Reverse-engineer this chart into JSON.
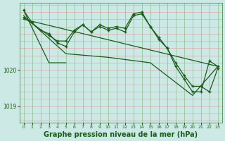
{
  "background_color": "#cce9e5",
  "plot_bg_color": "#cce9e5",
  "grid_color_v": "#5a9a5a",
  "grid_color_h": "#e89090",
  "line_color": "#1a5c1a",
  "xlabel": "Graphe pression niveau de la mer (hPa)",
  "xlabel_fontsize": 7,
  "yticks": [
    1019,
    1020
  ],
  "ylim": [
    1018.55,
    1021.85
  ],
  "xlim": [
    -0.5,
    23.5
  ],
  "xticks": [
    0,
    1,
    2,
    3,
    4,
    5,
    6,
    7,
    8,
    9,
    10,
    11,
    12,
    13,
    14,
    15,
    16,
    17,
    18,
    19,
    20,
    21,
    22,
    23
  ],
  "series1_x": [
    0,
    1,
    2,
    3,
    4,
    5,
    6,
    7,
    8,
    9,
    10,
    11,
    12,
    13,
    14,
    15,
    16,
    17,
    18,
    19,
    20,
    21,
    22,
    23
  ],
  "series1_y": [
    1021.65,
    1021.3,
    1021.1,
    1021.0,
    1020.75,
    1020.65,
    1021.05,
    1021.25,
    1021.05,
    1021.25,
    1021.15,
    1021.2,
    1021.15,
    1021.55,
    1021.6,
    1021.2,
    1020.9,
    1020.6,
    1020.2,
    1019.85,
    1019.55,
    1019.55,
    1019.4,
    1020.05
  ],
  "series2_x": [
    0,
    3,
    4,
    5,
    6,
    7,
    8,
    9,
    10,
    11,
    12,
    13,
    14,
    15,
    16,
    17,
    18,
    19,
    20,
    21,
    22,
    23
  ],
  "series2_y": [
    1021.45,
    1020.95,
    1020.8,
    1020.8,
    1021.1,
    1021.25,
    1021.05,
    1021.2,
    1021.1,
    1021.15,
    1021.05,
    1021.5,
    1021.55,
    1021.2,
    1020.85,
    1020.6,
    1020.1,
    1019.75,
    1019.4,
    1019.4,
    1020.25,
    1020.1
  ],
  "series3_x": [
    0,
    3,
    4,
    5
  ],
  "series3_y": [
    1021.65,
    1020.2,
    1020.2,
    1020.2
  ],
  "series4_x": [
    0,
    5,
    10,
    15,
    20,
    23
  ],
  "series4_y": [
    1021.5,
    1020.45,
    1020.35,
    1020.2,
    1019.3,
    1020.1
  ],
  "series5_x": [
    0,
    23
  ],
  "series5_y": [
    1021.4,
    1020.1
  ]
}
